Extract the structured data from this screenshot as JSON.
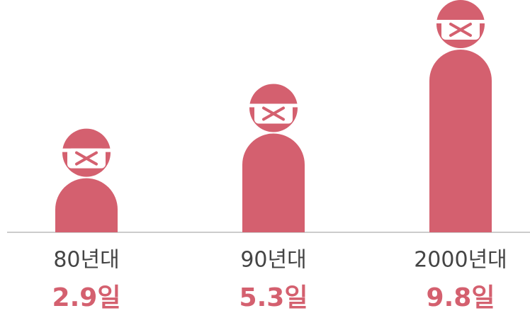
{
  "chart_data": {
    "type": "pictogram-bar",
    "categories": [
      "80년대",
      "90년대",
      "2000년대"
    ],
    "values": [
      2.9,
      5.3,
      9.8
    ],
    "value_labels": [
      "2.9일",
      "5.3일",
      "9.8일"
    ],
    "color": "#d4606f"
  }
}
